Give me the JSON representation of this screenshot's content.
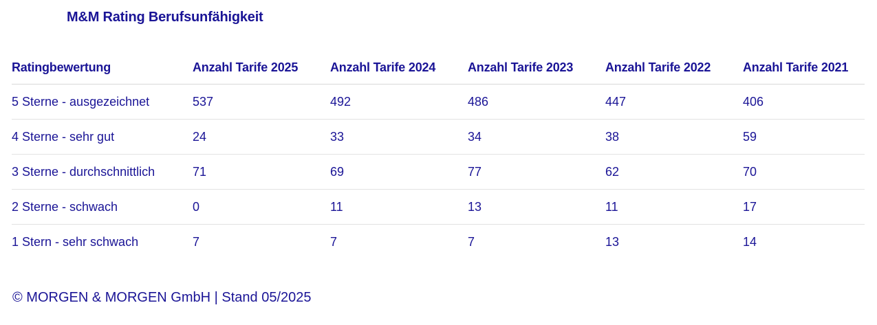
{
  "title": "M&M Rating Berufsunfähigkeit",
  "table": {
    "headers": [
      "Ratingbewertung",
      "Anzahl Tarife 2025",
      "Anzahl Tarife 2024",
      "Anzahl Tarife 2023",
      "Anzahl Tarife 2022",
      "Anzahl Tarife 2021"
    ],
    "rows": [
      [
        "5 Sterne - ausgezeichnet",
        "537",
        "492",
        "486",
        "447",
        "406"
      ],
      [
        "4 Sterne - sehr gut",
        "24",
        "33",
        "34",
        "38",
        "59"
      ],
      [
        "3 Sterne - durchschnittlich",
        "71",
        "69",
        "77",
        "62",
        "70"
      ],
      [
        "2 Sterne - schwach",
        "0",
        "11",
        "13",
        "11",
        "17"
      ],
      [
        "1 Stern - sehr schwach",
        "7",
        "7",
        "7",
        "13",
        "14"
      ]
    ]
  },
  "footer": "© MORGEN & MORGEN GmbH | Stand 05/2025",
  "colors": {
    "text": "#1a1496",
    "divider": "#e2e2e2",
    "background": "#ffffff"
  }
}
